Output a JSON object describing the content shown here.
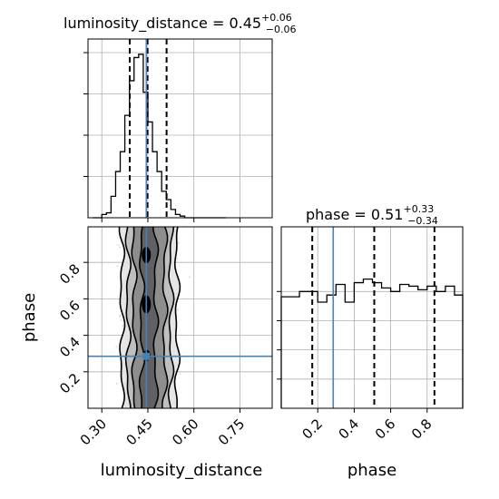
{
  "chart_data": [
    {
      "type": "histogram",
      "panel": "marginal-luminosity_distance",
      "title_param": "luminosity_distance",
      "title_value": "0.45",
      "title_plus": "+0.06",
      "title_minus": "−0.06",
      "xlim": [
        0.255,
        0.855
      ],
      "ylim": [
        0,
        1.0
      ],
      "bin_edges": [
        0.27,
        0.285,
        0.3,
        0.315,
        0.33,
        0.345,
        0.36,
        0.375,
        0.39,
        0.405,
        0.42,
        0.435,
        0.45,
        0.465,
        0.48,
        0.495,
        0.51,
        0.525,
        0.54,
        0.555,
        0.57,
        0.585,
        0.6,
        0.615,
        0.63,
        0.645,
        0.66,
        0.675,
        0.69,
        0.705
      ],
      "counts": [
        0.0,
        0.0,
        0.02,
        0.03,
        0.13,
        0.28,
        0.4,
        0.62,
        0.83,
        0.97,
        0.99,
        0.76,
        0.58,
        0.4,
        0.28,
        0.16,
        0.11,
        0.05,
        0.02,
        0.01,
        0.0,
        0.0,
        0.0,
        0.0,
        0.0,
        0.0,
        0.0,
        0.0,
        0.0
      ],
      "quantiles": [
        0.391,
        0.449,
        0.511
      ],
      "truth": 0.445
    },
    {
      "type": "histogram",
      "panel": "marginal-phase",
      "title_param": "phase",
      "title_value": "0.51",
      "title_plus": "+0.33",
      "title_minus": "−0.34",
      "xlim": [
        0.0,
        0.995
      ],
      "ylim": [
        0,
        1.0
      ],
      "bin_edges": [
        0.0,
        0.05,
        0.1,
        0.15,
        0.2,
        0.25,
        0.3,
        0.35,
        0.4,
        0.45,
        0.5,
        0.55,
        0.6,
        0.65,
        0.7,
        0.75,
        0.8,
        0.85,
        0.9,
        0.95,
        0.995
      ],
      "counts": [
        0.63,
        0.63,
        0.66,
        0.66,
        0.6,
        0.64,
        0.7,
        0.6,
        0.71,
        0.73,
        0.71,
        0.68,
        0.66,
        0.7,
        0.69,
        0.67,
        0.69,
        0.66,
        0.69,
        0.64
      ],
      "quantiles": [
        0.17,
        0.51,
        0.84
      ],
      "truth": 0.285,
      "xticks": [
        "0.2",
        "0.4",
        "0.6",
        "0.8"
      ],
      "xlabel": "phase"
    },
    {
      "type": "scatter-density",
      "panel": "joint-luminosity_distance-phase",
      "xlim": [
        0.255,
        0.855
      ],
      "ylim": [
        0.0,
        0.995
      ],
      "xticks": [
        "0.30",
        "0.45",
        "0.60",
        "0.75"
      ],
      "yticks": [
        "0.2",
        "0.4",
        "0.6",
        "0.8"
      ],
      "xlabel": "luminosity_distance",
      "ylabel": "phase",
      "x_center": 0.449,
      "x_sigma": 0.035,
      "truth": {
        "luminosity_distance": 0.445,
        "phase": 0.285
      },
      "contour_left_x": [
        0.43,
        0.405,
        0.385,
        0.365
      ],
      "contour_right_x": [
        0.475,
        0.505,
        0.525,
        0.545
      ]
    }
  ]
}
